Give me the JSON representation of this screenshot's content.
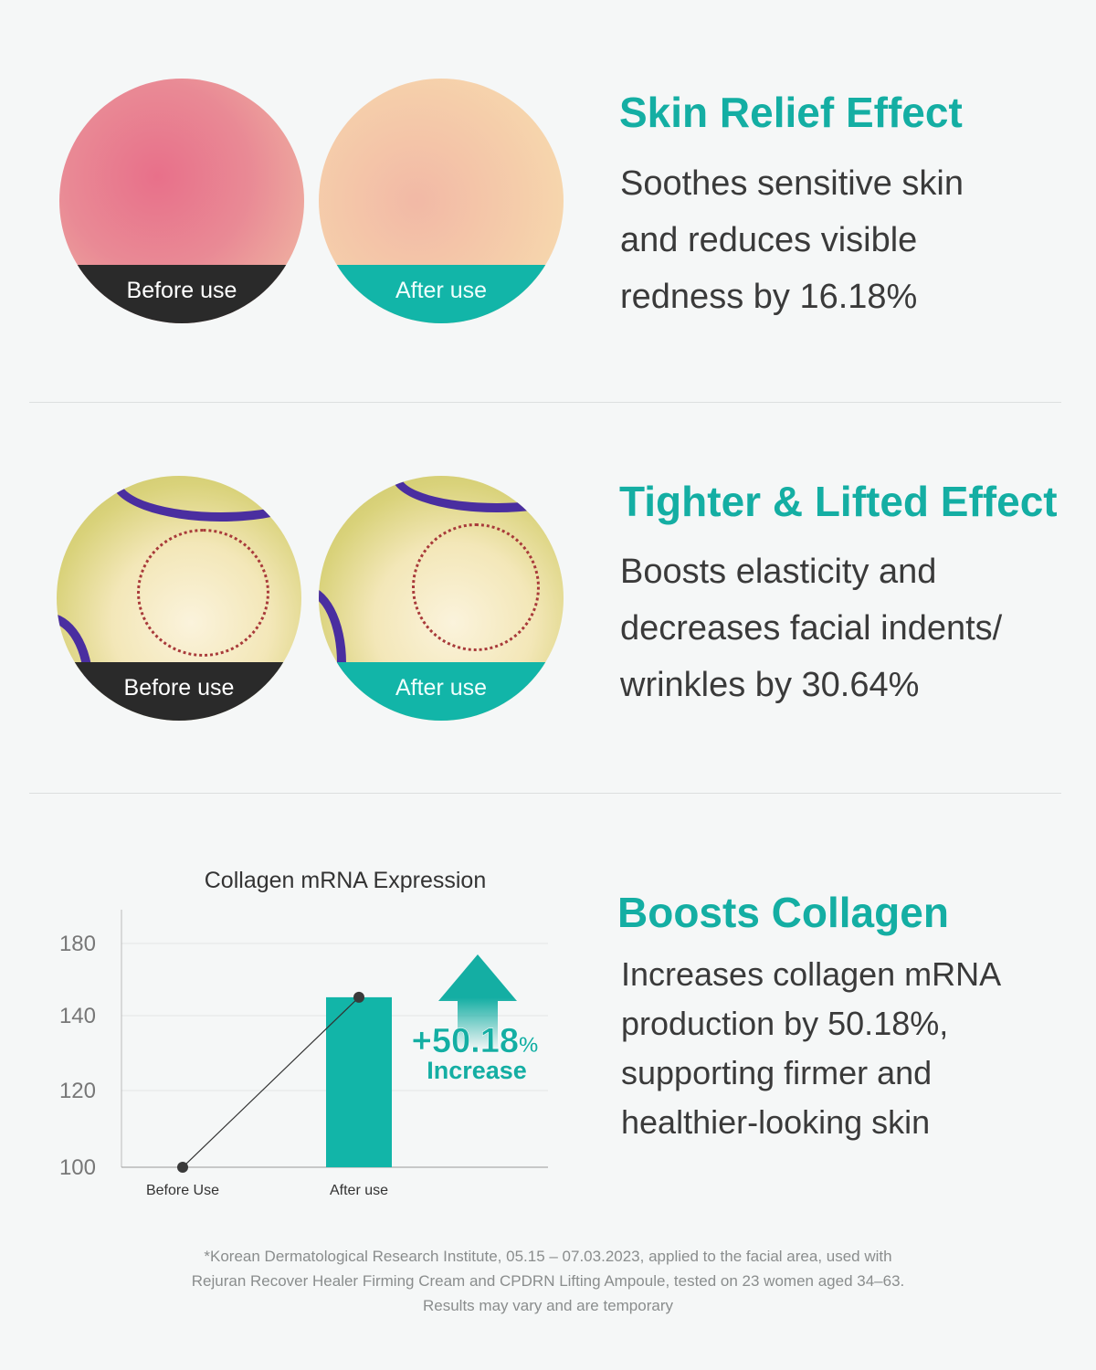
{
  "section1": {
    "title": "Skin Relief Effect",
    "lines": [
      "Soothes sensitive skin",
      "and reduces visible",
      "redness by 16.18%"
    ],
    "before_label": "Before use",
    "after_label": "After use"
  },
  "section2": {
    "title": "Tighter & Lifted Effect",
    "lines": [
      "Boosts elasticity and",
      "decreases facial indents/",
      "wrinkles by 30.64%"
    ],
    "before_label": "Before use",
    "after_label": "After use"
  },
  "section3": {
    "title": "Boosts Collagen",
    "lines": [
      "Increases collagen mRNA",
      "production by 50.18%,",
      "supporting firmer and",
      "healthier-looking skin"
    ]
  },
  "chart_data": {
    "type": "bar",
    "title": "Collagen mRNA Expression",
    "categories": [
      "Before Use",
      "After use"
    ],
    "values": [
      100,
      150.18
    ],
    "yticks": [
      100,
      120,
      140,
      180
    ],
    "ylim": [
      100,
      180
    ],
    "grid": true,
    "annotation": {
      "value": "+50.18",
      "unit": "%",
      "label": "Increase"
    },
    "bar_color": "#12b5a8"
  },
  "footnote": [
    "*Korean Dermatological Research Institute, 05.15 – 07.03.2023, applied to the facial area, used with",
    "Rejuran Recover Healer Firming Cream and CPDRN Lifting Ampoule, tested on 23 women aged 34–63.",
    "Results may vary and are temporary"
  ],
  "colors": {
    "accent": "#14aea3",
    "text": "#3a3a3a",
    "dark_band": "#2a2a2a"
  }
}
